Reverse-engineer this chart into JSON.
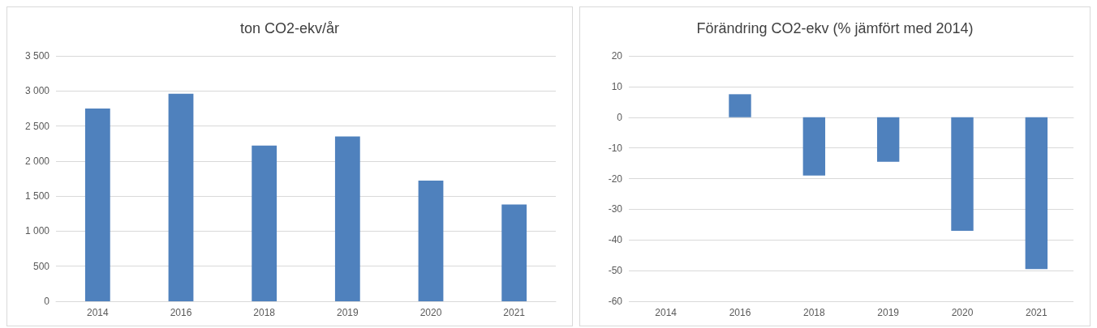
{
  "chart_data": [
    {
      "type": "bar",
      "title": "ton CO2-ekv/år",
      "categories": [
        "2014",
        "2016",
        "2018",
        "2019",
        "2020",
        "2021"
      ],
      "values": [
        2750,
        2960,
        2220,
        2350,
        1720,
        1380
      ],
      "color": "#4f81bd",
      "ylim": [
        0,
        3500
      ],
      "yticks": [
        0,
        500,
        {
          "value": 1000,
          "label": "1 000"
        },
        {
          "value": 1500,
          "label": "1 500"
        },
        {
          "value": 2000,
          "label": "2 000"
        },
        {
          "value": 2500,
          "label": "2 500"
        },
        {
          "value": 3000,
          "label": "3 000"
        },
        {
          "value": 3500,
          "label": "3 500"
        }
      ],
      "grid": "y"
    },
    {
      "type": "bar",
      "title": "Förändring CO2-ekv (% jämfört med 2014)",
      "categories": [
        "2014",
        "2016",
        "2018",
        "2019",
        "2020",
        "2021"
      ],
      "values": [
        0,
        7.5,
        -19,
        -14.5,
        -37,
        -49.5
      ],
      "color": "#4f81bd",
      "ylim": [
        -60,
        20
      ],
      "yticks": [
        -60,
        -50,
        -40,
        -30,
        -20,
        -10,
        0,
        10,
        20
      ],
      "grid": "y"
    }
  ]
}
